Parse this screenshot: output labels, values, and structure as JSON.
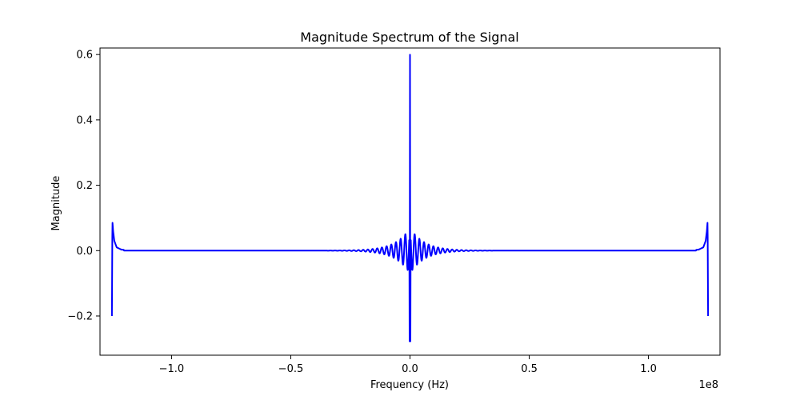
{
  "chart_data": {
    "type": "line",
    "title": "Magnitude Spectrum of the Signal",
    "xlabel": "Frequency (Hz)",
    "ylabel": "Magnitude",
    "x_scale_label": "1e8",
    "xlim": [
      -1.3,
      1.3
    ],
    "ylim": [
      -0.32,
      0.62
    ],
    "x_ticks": [
      -1.0,
      -0.5,
      0.0,
      0.5,
      1.0
    ],
    "x_tick_labels": [
      "−1.0",
      "−0.5",
      "0.0",
      "0.5",
      "1.0"
    ],
    "y_ticks": [
      -0.2,
      0.0,
      0.2,
      0.4,
      0.6
    ],
    "y_tick_labels": [
      "−0.2",
      "0.0",
      "0.2",
      "0.4",
      "0.6"
    ],
    "grid": false,
    "legend": "none",
    "series": [
      {
        "color": "#0000ff",
        "x": [
          -1.25,
          -1.248,
          -1.245,
          -1.24,
          -1.23,
          -1.21,
          -1.18,
          -1.0,
          -0.5,
          -0.2,
          -0.1,
          -0.05,
          0.0,
          0.05,
          0.1,
          0.2,
          0.5,
          1.0,
          1.18,
          1.21,
          1.23,
          1.24,
          1.245,
          1.248,
          1.25
        ],
        "y": [
          -0.2,
          0.09,
          0.06,
          0.03,
          0.01,
          0.003,
          0.001,
          0.0,
          0.0,
          0.003,
          0.012,
          0.03,
          0.6,
          0.03,
          0.012,
          0.003,
          0.0,
          0.0,
          0.001,
          0.003,
          0.01,
          0.03,
          0.06,
          0.09,
          -0.2
        ]
      }
    ]
  }
}
